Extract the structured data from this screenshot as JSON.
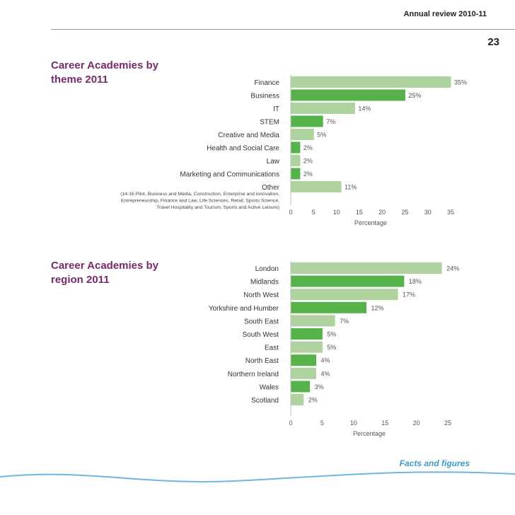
{
  "header": {
    "title": "Annual review 2010-11",
    "page_number": "23"
  },
  "footer": {
    "label": "Facts and figures"
  },
  "colors": {
    "dark_bar": "#55b34a",
    "light_bar": "#aed39e",
    "title": "#7a2a6a",
    "footer": "#3a9bd4"
  },
  "chart_data": [
    {
      "type": "bar",
      "orientation": "horizontal",
      "title": "Career Academies by theme 2011",
      "categories": [
        "Finance",
        "Business",
        "IT",
        "STEM",
        "Creative and Media",
        "Health and Social Care",
        "Law",
        "Marketing and Communications",
        "Other"
      ],
      "values": [
        35,
        25,
        14,
        7,
        5,
        2,
        2,
        2,
        11
      ],
      "data_labels": [
        "35%",
        "25%",
        "14%",
        "7%",
        "5%",
        "2%",
        "2%",
        "2%",
        "11%"
      ],
      "note_lines": [
        "(14-16 Pilot, Business and Media, Construction, Enterprise and Innovation,",
        "Entrepreneurship, Finance and Law, Life Sciences, Retail, Sports Science,",
        "Travel Hospitality and Tourism, Sports and Active Leisure)"
      ],
      "xlabel": "Percentage",
      "xticks": [
        0,
        5,
        10,
        15,
        20,
        25,
        30,
        35
      ],
      "xlim": [
        0,
        35
      ]
    },
    {
      "type": "bar",
      "orientation": "horizontal",
      "title": "Career Academies by region 2011",
      "categories": [
        "London",
        "Midlands",
        "North West",
        "Yorkshire and Humber",
        "South East",
        "South West",
        "East",
        "North East",
        "Northern Ireland",
        "Wales",
        "Scotland"
      ],
      "values": [
        24,
        18,
        17,
        12,
        7,
        5,
        5,
        4,
        4,
        3,
        2
      ],
      "data_labels": [
        "24%",
        "18%",
        "17%",
        "12%",
        "7%",
        "5%",
        "5%",
        "4%",
        "4%",
        "3%",
        "2%"
      ],
      "xlabel": "Percentage",
      "xticks": [
        0,
        5,
        10,
        15,
        20,
        25
      ],
      "xlim": [
        0,
        25
      ]
    }
  ]
}
